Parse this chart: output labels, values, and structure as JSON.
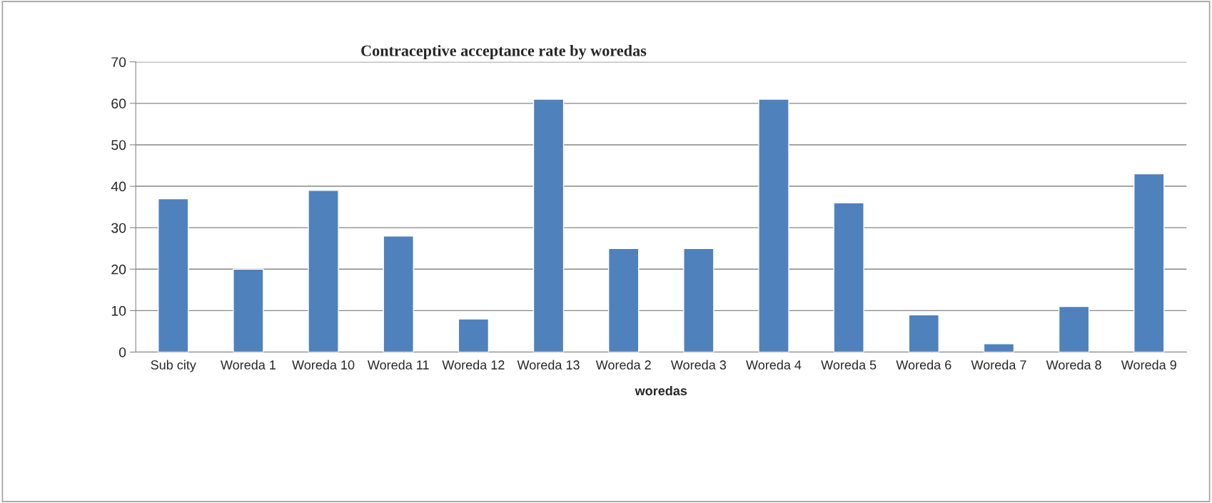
{
  "chart_data": {
    "type": "bar",
    "title": "Contraceptive acceptance rate by woredas",
    "xlabel": "woredas",
    "categories": [
      "Sub city",
      "Woreda 1",
      "Woreda 10",
      "Woreda 11",
      "Woreda 12",
      "Woreda 13",
      "Woreda 2",
      "Woreda 3",
      "Woreda 4",
      "Woreda 5",
      "Woreda 6",
      "Woreda 7",
      "Woreda 8",
      "Woreda 9"
    ],
    "values": [
      37,
      20,
      39,
      28,
      8,
      61,
      25,
      25,
      61,
      36,
      9,
      2,
      11,
      43
    ],
    "color": "#4f81bd",
    "ylim": [
      0,
      70
    ],
    "yticks": [
      0,
      10,
      20,
      30,
      40,
      50,
      60,
      70
    ],
    "grid": "y",
    "legend": false
  }
}
